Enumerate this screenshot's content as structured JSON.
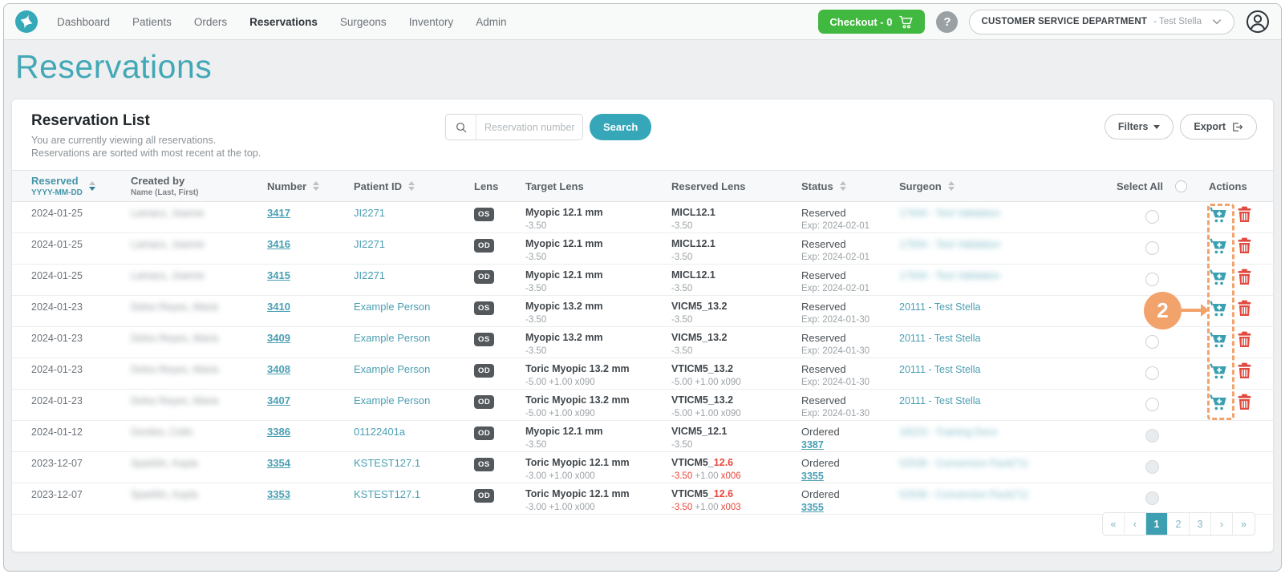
{
  "colors": {
    "teal": "#35a7b8",
    "green": "#41b83f",
    "orange": "#f2a26b",
    "red": "#e8463c",
    "badge_gray": "#53585d"
  },
  "nav": {
    "items": [
      {
        "label": "Dashboard",
        "active": false
      },
      {
        "label": "Patients",
        "active": false
      },
      {
        "label": "Orders",
        "active": false
      },
      {
        "label": "Reservations",
        "active": true
      },
      {
        "label": "Surgeons",
        "active": false
      },
      {
        "label": "Inventory",
        "active": false
      },
      {
        "label": "Admin",
        "active": false
      }
    ],
    "checkout_label": "Checkout - 0",
    "help_label": "?",
    "account": {
      "org": "CUSTOMER SERVICE DEPARTMENT",
      "user": "- Test Stella"
    }
  },
  "page": {
    "title": "Reservations"
  },
  "panel": {
    "heading": "Reservation List",
    "subtitle1": "You are currently viewing all reservations.",
    "subtitle2": "Reservations are sorted with most recent at the top.",
    "search_placeholder": "Reservation number",
    "search_button": "Search",
    "filters_button": "Filters",
    "export_button": "Export"
  },
  "table": {
    "headers": [
      {
        "label": "Reserved",
        "sub": "YYYY-MM-DD"
      },
      {
        "label": "Created by",
        "sub": "Name (Last, First)"
      },
      {
        "label": "Number"
      },
      {
        "label": "Patient ID"
      },
      {
        "label": "Lens"
      },
      {
        "label": "Target Lens"
      },
      {
        "label": "Reserved Lens"
      },
      {
        "label": "Status"
      },
      {
        "label": "Surgeon"
      },
      {
        "label": "Select All"
      },
      {
        "label": "Actions"
      }
    ],
    "rows": [
      {
        "date": "2024-01-25",
        "created_by": {
          "text": "Lamacs, Joanne",
          "blurred": true
        },
        "number": "3417",
        "patient_id": "JI2271",
        "lens": "OS",
        "target": {
          "name": "Myopic 12.1 mm",
          "power": "-3.50"
        },
        "reserved_lens": {
          "name": [
            {
              "t": "MICL12.1"
            }
          ],
          "power": [
            {
              "t": "-3.50"
            }
          ]
        },
        "status": {
          "label": "Reserved",
          "sub": "Exp: 2024-02-01",
          "sub_is_link": false
        },
        "surgeon": {
          "text": "17934 - Test Validation",
          "blurred": true
        },
        "has_actions": true
      },
      {
        "date": "2024-01-25",
        "created_by": {
          "text": "Lamacs, Joanne",
          "blurred": true
        },
        "number": "3416",
        "patient_id": "JI2271",
        "lens": "OD",
        "target": {
          "name": "Myopic 12.1 mm",
          "power": "-3.50"
        },
        "reserved_lens": {
          "name": [
            {
              "t": "MICL12.1"
            }
          ],
          "power": [
            {
              "t": "-3.50"
            }
          ]
        },
        "status": {
          "label": "Reserved",
          "sub": "Exp: 2024-02-01",
          "sub_is_link": false
        },
        "surgeon": {
          "text": "17934 - Test Validation",
          "blurred": true
        },
        "has_actions": true
      },
      {
        "date": "2024-01-25",
        "created_by": {
          "text": "Lamacs, Joanne",
          "blurred": true
        },
        "number": "3415",
        "patient_id": "JI2271",
        "lens": "OD",
        "target": {
          "name": "Myopic 12.1 mm",
          "power": "-3.50"
        },
        "reserved_lens": {
          "name": [
            {
              "t": "MICL12.1"
            }
          ],
          "power": [
            {
              "t": "-3.50"
            }
          ]
        },
        "status": {
          "label": "Reserved",
          "sub": "Exp: 2024-02-01",
          "sub_is_link": false
        },
        "surgeon": {
          "text": "17934 - Test Validation",
          "blurred": true
        },
        "has_actions": true
      },
      {
        "date": "2024-01-23",
        "created_by": {
          "text": "Delos Reyes, Maria",
          "blurred": true
        },
        "number": "3410",
        "patient_id": "Example Person",
        "lens": "OS",
        "target": {
          "name": "Myopic 13.2 mm",
          "power": "-3.50"
        },
        "reserved_lens": {
          "name": [
            {
              "t": "VICM5_13.2"
            }
          ],
          "power": [
            {
              "t": "-3.50"
            }
          ]
        },
        "status": {
          "label": "Reserved",
          "sub": "Exp: 2024-01-30",
          "sub_is_link": false
        },
        "surgeon": {
          "text": "20111 - Test Stella",
          "blurred": false
        },
        "has_actions": true
      },
      {
        "date": "2024-01-23",
        "created_by": {
          "text": "Delos Reyes, Maria",
          "blurred": true
        },
        "number": "3409",
        "patient_id": "Example Person",
        "lens": "OS",
        "target": {
          "name": "Myopic 13.2 mm",
          "power": "-3.50"
        },
        "reserved_lens": {
          "name": [
            {
              "t": "VICM5_13.2"
            }
          ],
          "power": [
            {
              "t": "-3.50"
            }
          ]
        },
        "status": {
          "label": "Reserved",
          "sub": "Exp: 2024-01-30",
          "sub_is_link": false
        },
        "surgeon": {
          "text": "20111 - Test Stella",
          "blurred": false
        },
        "has_actions": true
      },
      {
        "date": "2024-01-23",
        "created_by": {
          "text": "Delos Reyes, Maria",
          "blurred": true
        },
        "number": "3408",
        "patient_id": "Example Person",
        "lens": "OD",
        "target": {
          "name": "Toric Myopic 13.2 mm",
          "power": "-5.00 +1.00 x090"
        },
        "reserved_lens": {
          "name": [
            {
              "t": "VTICM5_13.2"
            }
          ],
          "power": [
            {
              "t": "-5.00 +1.00 x090"
            }
          ]
        },
        "status": {
          "label": "Reserved",
          "sub": "Exp: 2024-01-30",
          "sub_is_link": false
        },
        "surgeon": {
          "text": "20111 - Test Stella",
          "blurred": false
        },
        "has_actions": true
      },
      {
        "date": "2024-01-23",
        "created_by": {
          "text": "Delos Reyes, Maria",
          "blurred": true
        },
        "number": "3407",
        "patient_id": "Example Person",
        "lens": "OD",
        "target": {
          "name": "Toric Myopic 13.2 mm",
          "power": "-5.00 +1.00 x090"
        },
        "reserved_lens": {
          "name": [
            {
              "t": "VTICM5_13.2"
            }
          ],
          "power": [
            {
              "t": "-5.00 +1.00 x090"
            }
          ]
        },
        "status": {
          "label": "Reserved",
          "sub": "Exp: 2024-01-30",
          "sub_is_link": false
        },
        "surgeon": {
          "text": "20111 - Test Stella",
          "blurred": false
        },
        "has_actions": true
      },
      {
        "date": "2024-01-12",
        "created_by": {
          "text": "Gordon, Colin",
          "blurred": true
        },
        "number": "3386",
        "patient_id": "01122401a",
        "lens": "OD",
        "target": {
          "name": "Myopic 12.1 mm",
          "power": "-3.50"
        },
        "reserved_lens": {
          "name": [
            {
              "t": "VICM5_12.1"
            }
          ],
          "power": [
            {
              "t": "-3.50"
            }
          ]
        },
        "status": {
          "label": "Ordered",
          "sub": "3387",
          "sub_is_link": true
        },
        "surgeon": {
          "text": "18223 - Training Docs",
          "blurred": true
        },
        "has_actions": false
      },
      {
        "date": "2023-12-07",
        "created_by": {
          "text": "Sparklin, Kayla",
          "blurred": true
        },
        "number": "3354",
        "patient_id": "KSTEST127.1",
        "lens": "OS",
        "target": {
          "name": "Toric Myopic 12.1 mm",
          "power": "-3.00 +1.00 x000"
        },
        "reserved_lens": {
          "name": [
            {
              "t": "VTICM5_"
            },
            {
              "t": "12.6",
              "red": true
            }
          ],
          "power": [
            {
              "t": "-3.50 ",
              "red": true
            },
            {
              "t": "+1.00 "
            },
            {
              "t": "x006",
              "red": true
            }
          ]
        },
        "status": {
          "label": "Ordered",
          "sub": "3355",
          "sub_is_link": true
        },
        "surgeon": {
          "text": "52539 - Conversion Pack(*1)",
          "blurred": true
        },
        "has_actions": false
      },
      {
        "date": "2023-12-07",
        "created_by": {
          "text": "Sparklin, Kayla",
          "blurred": true
        },
        "number": "3353",
        "patient_id": "KSTEST127.1",
        "lens": "OD",
        "target": {
          "name": "Toric Myopic 12.1 mm",
          "power": "-3.00 +1.00 x000"
        },
        "reserved_lens": {
          "name": [
            {
              "t": "VTICM5_"
            },
            {
              "t": "12.6",
              "red": true
            }
          ],
          "power": [
            {
              "t": "-3.50 ",
              "red": true
            },
            {
              "t": "+1.00 "
            },
            {
              "t": "x003",
              "red": true
            }
          ]
        },
        "status": {
          "label": "Ordered",
          "sub": "3355",
          "sub_is_link": true
        },
        "surgeon": {
          "text": "52539 - Conversion Pack(*1)",
          "blurred": true
        },
        "has_actions": false
      }
    ]
  },
  "annotation": {
    "step": "2"
  },
  "pagination": {
    "items": [
      "«",
      "‹",
      "1",
      "2",
      "3",
      "›",
      "»"
    ],
    "active_index": 2
  }
}
